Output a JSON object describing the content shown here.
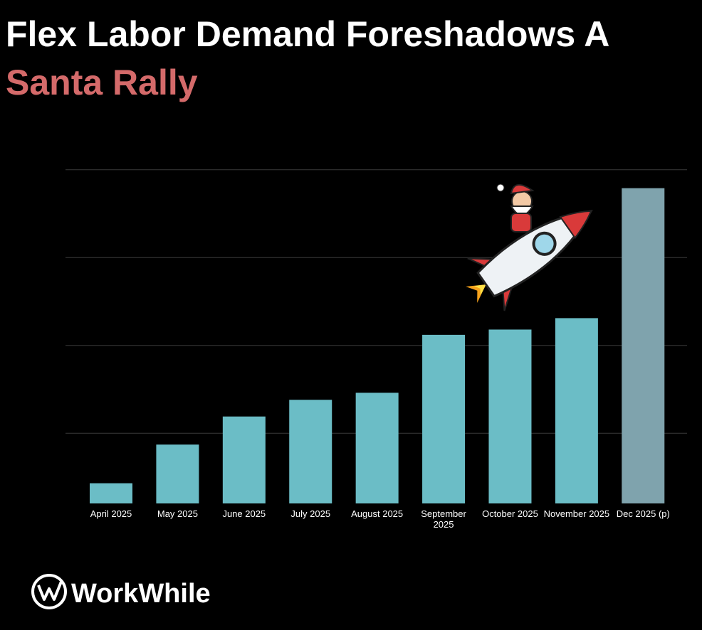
{
  "chart_data": {
    "type": "bar",
    "title": "Flex Labor Demand Foreshadows A",
    "title_highlight": "Santa Rally",
    "categories": [
      "April 2025",
      "May 2025",
      "June 2025",
      "July 2025",
      "August 2025",
      "September 2025",
      "October 2025",
      "November 2025",
      "Dec 2025 (p)"
    ],
    "values": [
      0.43,
      0.87,
      1.19,
      1.38,
      1.46,
      2.12,
      2.18,
      2.31,
      3.79
    ],
    "colors": [
      "#6bbdc6",
      "#6bbdc6",
      "#6bbdc6",
      "#6bbdc6",
      "#6bbdc6",
      "#6bbdc6",
      "#6bbdc6",
      "#6bbdc6",
      "#7fa3ad"
    ],
    "ylim": [
      0.2,
      4.2
    ],
    "yticks": [
      1,
      2,
      3,
      4
    ],
    "grid": true,
    "logo": "WorkWhile"
  }
}
